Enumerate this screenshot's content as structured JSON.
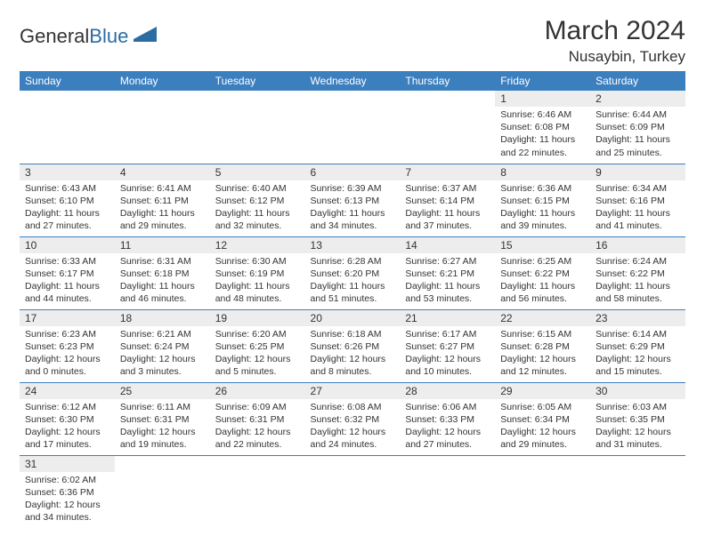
{
  "logo": {
    "general": "General",
    "blue": "Blue"
  },
  "header": {
    "title": "March 2024",
    "location": "Nusaybin, Turkey"
  },
  "colors": {
    "header_bg": "#3b7fbf",
    "header_text": "#ffffff",
    "cell_border": "#3b7fbf",
    "daynum_bg": "#ededed",
    "text": "#333333"
  },
  "weekdays": [
    "Sunday",
    "Monday",
    "Tuesday",
    "Wednesday",
    "Thursday",
    "Friday",
    "Saturday"
  ],
  "weeks": [
    [
      null,
      null,
      null,
      null,
      null,
      {
        "n": "1",
        "sr": "Sunrise: 6:46 AM",
        "ss": "Sunset: 6:08 PM",
        "dl": "Daylight: 11 hours and 22 minutes."
      },
      {
        "n": "2",
        "sr": "Sunrise: 6:44 AM",
        "ss": "Sunset: 6:09 PM",
        "dl": "Daylight: 11 hours and 25 minutes."
      }
    ],
    [
      {
        "n": "3",
        "sr": "Sunrise: 6:43 AM",
        "ss": "Sunset: 6:10 PM",
        "dl": "Daylight: 11 hours and 27 minutes."
      },
      {
        "n": "4",
        "sr": "Sunrise: 6:41 AM",
        "ss": "Sunset: 6:11 PM",
        "dl": "Daylight: 11 hours and 29 minutes."
      },
      {
        "n": "5",
        "sr": "Sunrise: 6:40 AM",
        "ss": "Sunset: 6:12 PM",
        "dl": "Daylight: 11 hours and 32 minutes."
      },
      {
        "n": "6",
        "sr": "Sunrise: 6:39 AM",
        "ss": "Sunset: 6:13 PM",
        "dl": "Daylight: 11 hours and 34 minutes."
      },
      {
        "n": "7",
        "sr": "Sunrise: 6:37 AM",
        "ss": "Sunset: 6:14 PM",
        "dl": "Daylight: 11 hours and 37 minutes."
      },
      {
        "n": "8",
        "sr": "Sunrise: 6:36 AM",
        "ss": "Sunset: 6:15 PM",
        "dl": "Daylight: 11 hours and 39 minutes."
      },
      {
        "n": "9",
        "sr": "Sunrise: 6:34 AM",
        "ss": "Sunset: 6:16 PM",
        "dl": "Daylight: 11 hours and 41 minutes."
      }
    ],
    [
      {
        "n": "10",
        "sr": "Sunrise: 6:33 AM",
        "ss": "Sunset: 6:17 PM",
        "dl": "Daylight: 11 hours and 44 minutes."
      },
      {
        "n": "11",
        "sr": "Sunrise: 6:31 AM",
        "ss": "Sunset: 6:18 PM",
        "dl": "Daylight: 11 hours and 46 minutes."
      },
      {
        "n": "12",
        "sr": "Sunrise: 6:30 AM",
        "ss": "Sunset: 6:19 PM",
        "dl": "Daylight: 11 hours and 48 minutes."
      },
      {
        "n": "13",
        "sr": "Sunrise: 6:28 AM",
        "ss": "Sunset: 6:20 PM",
        "dl": "Daylight: 11 hours and 51 minutes."
      },
      {
        "n": "14",
        "sr": "Sunrise: 6:27 AM",
        "ss": "Sunset: 6:21 PM",
        "dl": "Daylight: 11 hours and 53 minutes."
      },
      {
        "n": "15",
        "sr": "Sunrise: 6:25 AM",
        "ss": "Sunset: 6:22 PM",
        "dl": "Daylight: 11 hours and 56 minutes."
      },
      {
        "n": "16",
        "sr": "Sunrise: 6:24 AM",
        "ss": "Sunset: 6:22 PM",
        "dl": "Daylight: 11 hours and 58 minutes."
      }
    ],
    [
      {
        "n": "17",
        "sr": "Sunrise: 6:23 AM",
        "ss": "Sunset: 6:23 PM",
        "dl": "Daylight: 12 hours and 0 minutes."
      },
      {
        "n": "18",
        "sr": "Sunrise: 6:21 AM",
        "ss": "Sunset: 6:24 PM",
        "dl": "Daylight: 12 hours and 3 minutes."
      },
      {
        "n": "19",
        "sr": "Sunrise: 6:20 AM",
        "ss": "Sunset: 6:25 PM",
        "dl": "Daylight: 12 hours and 5 minutes."
      },
      {
        "n": "20",
        "sr": "Sunrise: 6:18 AM",
        "ss": "Sunset: 6:26 PM",
        "dl": "Daylight: 12 hours and 8 minutes."
      },
      {
        "n": "21",
        "sr": "Sunrise: 6:17 AM",
        "ss": "Sunset: 6:27 PM",
        "dl": "Daylight: 12 hours and 10 minutes."
      },
      {
        "n": "22",
        "sr": "Sunrise: 6:15 AM",
        "ss": "Sunset: 6:28 PM",
        "dl": "Daylight: 12 hours and 12 minutes."
      },
      {
        "n": "23",
        "sr": "Sunrise: 6:14 AM",
        "ss": "Sunset: 6:29 PM",
        "dl": "Daylight: 12 hours and 15 minutes."
      }
    ],
    [
      {
        "n": "24",
        "sr": "Sunrise: 6:12 AM",
        "ss": "Sunset: 6:30 PM",
        "dl": "Daylight: 12 hours and 17 minutes."
      },
      {
        "n": "25",
        "sr": "Sunrise: 6:11 AM",
        "ss": "Sunset: 6:31 PM",
        "dl": "Daylight: 12 hours and 19 minutes."
      },
      {
        "n": "26",
        "sr": "Sunrise: 6:09 AM",
        "ss": "Sunset: 6:31 PM",
        "dl": "Daylight: 12 hours and 22 minutes."
      },
      {
        "n": "27",
        "sr": "Sunrise: 6:08 AM",
        "ss": "Sunset: 6:32 PM",
        "dl": "Daylight: 12 hours and 24 minutes."
      },
      {
        "n": "28",
        "sr": "Sunrise: 6:06 AM",
        "ss": "Sunset: 6:33 PM",
        "dl": "Daylight: 12 hours and 27 minutes."
      },
      {
        "n": "29",
        "sr": "Sunrise: 6:05 AM",
        "ss": "Sunset: 6:34 PM",
        "dl": "Daylight: 12 hours and 29 minutes."
      },
      {
        "n": "30",
        "sr": "Sunrise: 6:03 AM",
        "ss": "Sunset: 6:35 PM",
        "dl": "Daylight: 12 hours and 31 minutes."
      }
    ],
    [
      {
        "n": "31",
        "sr": "Sunrise: 6:02 AM",
        "ss": "Sunset: 6:36 PM",
        "dl": "Daylight: 12 hours and 34 minutes."
      },
      null,
      null,
      null,
      null,
      null,
      null
    ]
  ]
}
